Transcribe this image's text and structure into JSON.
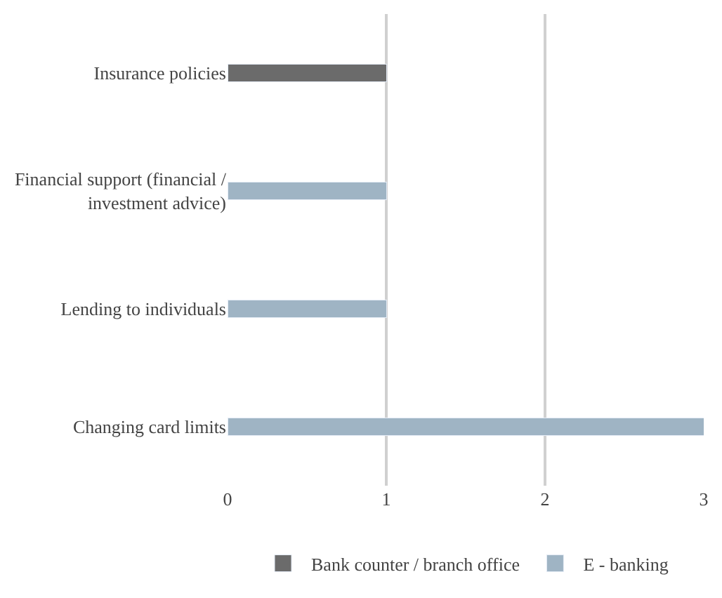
{
  "chart_data": {
    "type": "bar",
    "orientation": "horizontal",
    "stacked": true,
    "categories": [
      "Insurance policies",
      "Financial support (financial / investment advice)",
      "Lending to individuals",
      "Changing card limits"
    ],
    "series": [
      {
        "name": "E - banking",
        "color": "#9fb4c4",
        "values": [
          null,
          1,
          1,
          3
        ]
      },
      {
        "name": "Bank counter / branch office",
        "color": "#6b6b6b",
        "values": [
          1,
          null,
          null,
          null
        ]
      }
    ],
    "xlim": [
      0,
      3
    ],
    "xticks": [
      0,
      1,
      2,
      3
    ],
    "grid": "x",
    "legend": "bottom"
  }
}
